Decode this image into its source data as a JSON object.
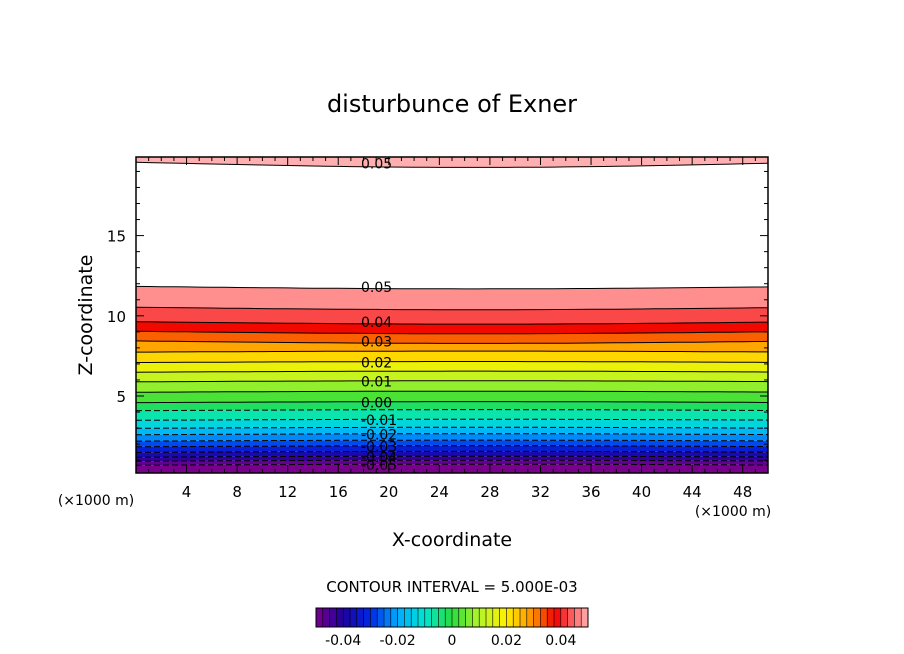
{
  "chart_data": {
    "type": "contour",
    "title": "disturbunce of Exner",
    "xlabel": "X-coordinate",
    "ylabel": "Z-coordinate",
    "x_unit": "(×1000 m)",
    "y_unit": "(×1000 m)",
    "xlim": [
      0,
      50
    ],
    "ylim": [
      0.2,
      19.9
    ],
    "x_ticks": [
      4,
      8,
      12,
      16,
      20,
      24,
      28,
      32,
      36,
      40,
      44,
      48
    ],
    "y_ticks": [
      5,
      10,
      15
    ],
    "contour_interval_text": "CONTOUR INTERVAL = 5.000E-03",
    "colorbar": {
      "range": [
        -0.05,
        0.05
      ],
      "ticks": [
        "-0.04",
        "-0.02",
        "0",
        "0.02",
        "0.04"
      ]
    },
    "contour_labels": [
      "0.05",
      "0.05",
      "0.04",
      "0.03",
      "0.02",
      "0.01",
      "0.00",
      "-0.01",
      "-0.02",
      "-0.03",
      "-0.04",
      "-0.05"
    ],
    "contour_levels": [
      {
        "value": -0.05,
        "z": 0.7
      },
      {
        "value": -0.045,
        "z": 0.95
      },
      {
        "value": -0.04,
        "z": 1.2
      },
      {
        "value": -0.035,
        "z": 1.5
      },
      {
        "value": -0.03,
        "z": 1.85
      },
      {
        "value": -0.025,
        "z": 2.2
      },
      {
        "value": -0.02,
        "z": 2.6
      },
      {
        "value": -0.015,
        "z": 3.0
      },
      {
        "value": -0.01,
        "z": 3.5
      },
      {
        "value": -0.005,
        "z": 4.1
      },
      {
        "value": 0.0,
        "z": 4.6
      },
      {
        "value": 0.005,
        "z": 5.25
      },
      {
        "value": 0.01,
        "z": 5.9
      },
      {
        "value": 0.015,
        "z": 6.5
      },
      {
        "value": 0.02,
        "z": 7.1
      },
      {
        "value": 0.025,
        "z": 7.75
      },
      {
        "value": 0.03,
        "z": 8.4
      },
      {
        "value": 0.035,
        "z": 9.0
      },
      {
        "value": 0.04,
        "z": 9.6
      },
      {
        "value": 0.045,
        "z": 10.5
      },
      {
        "value": 0.05,
        "z": 11.8
      }
    ],
    "upper_contour": {
      "value": 0.05,
      "z": 19.5
    }
  }
}
